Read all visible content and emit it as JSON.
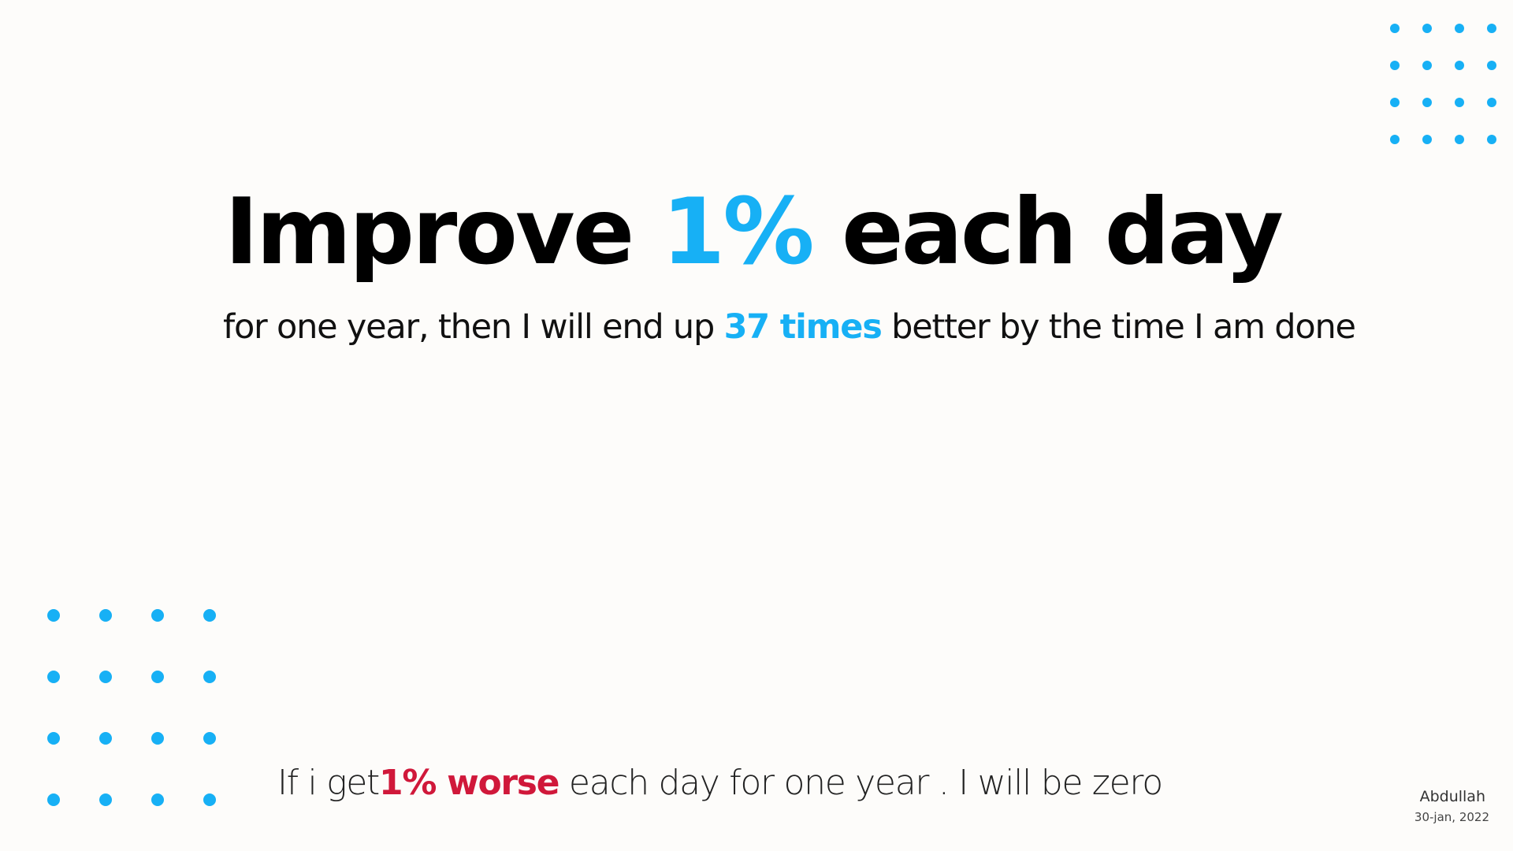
{
  "colors": {
    "background": "#fdfcfa",
    "accent_blue": "#17b0f5",
    "accent_red": "#d0183a",
    "text": "#000000"
  },
  "decorations": {
    "top_right_dots": {
      "rows": 4,
      "cols": 4
    },
    "bottom_left_dots": {
      "rows": 4,
      "cols": 4
    }
  },
  "headline": {
    "before": "Improve ",
    "highlight": "1%",
    "after": " each day"
  },
  "subline": {
    "before": "for one year, then I will end up ",
    "highlight": "37 times",
    "after": " better by the time I am done"
  },
  "bottom_line": {
    "before": "If i get",
    "highlight": "1% worse",
    "after": " each day for one year . I will be zero"
  },
  "footer": {
    "author": "Abdullah",
    "date": "30-jan, 2022"
  }
}
